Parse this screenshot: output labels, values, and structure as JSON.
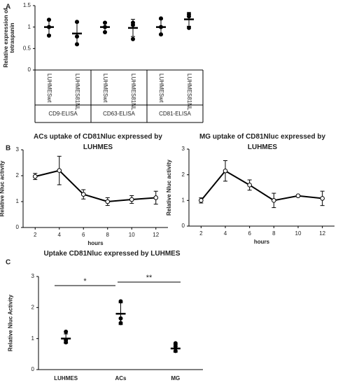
{
  "chart_data": [
    {
      "type": "dot",
      "panel": "A",
      "ylabel": "Relative expression of tetraspanin",
      "categories": [
        "LUHMESwt",
        "LUHMES81NL",
        "LUHMESwt",
        "LUHMES81NL",
        "LUHMESwt",
        "LUHMES81NL"
      ],
      "groups": [
        "CD9-ELISA",
        "CD63-ELISA",
        "CD81-ELISA"
      ],
      "values": [
        1.0,
        0.85,
        1.0,
        0.98,
        1.0,
        1.18
      ],
      "errors": [
        0.18,
        0.26,
        0.11,
        0.2,
        0.18,
        0.16
      ],
      "points": [
        [
          1.17,
          1.0,
          0.8
        ],
        [
          1.12,
          0.78,
          0.6
        ],
        [
          1.1,
          1.0,
          0.88
        ],
        [
          1.1,
          1.05,
          0.72
        ],
        [
          1.2,
          1.0,
          0.83
        ],
        [
          1.3,
          1.25,
          0.98
        ]
      ],
      "ylim": [
        0,
        1.5
      ],
      "yticks": [
        0,
        0.5,
        1,
        1.5
      ],
      "color": "#000000"
    },
    {
      "type": "line",
      "panel": "B",
      "title": "ACs uptake of CD81Nluc expressed by LUHMES",
      "xlabel": "hours",
      "ylabel": "Relative Nluc activity",
      "x": [
        2,
        4,
        6,
        8,
        10,
        12
      ],
      "values": [
        1.97,
        2.2,
        1.28,
        1.0,
        1.08,
        1.15
      ],
      "errors": [
        0.12,
        0.55,
        0.18,
        0.15,
        0.15,
        0.25
      ],
      "xlim": [
        1,
        13
      ],
      "xticks": [
        2,
        4,
        6,
        8,
        10,
        12
      ],
      "ylim": [
        0,
        3
      ],
      "yticks": [
        0,
        1,
        2,
        3
      ],
      "color": "#000000"
    },
    {
      "type": "line",
      "title": "MG uptake of CD81Nluc expressed by LUHMES",
      "xlabel": "hours",
      "ylabel": "Relative Nluc activity",
      "x": [
        2,
        4,
        6,
        8,
        10,
        12
      ],
      "values": [
        1.0,
        2.15,
        1.6,
        1.0,
        1.18,
        1.08
      ],
      "errors": [
        0.1,
        0.4,
        0.2,
        0.28,
        0.03,
        0.28
      ],
      "xlim": [
        1,
        13
      ],
      "xticks": [
        2,
        4,
        6,
        8,
        10,
        12
      ],
      "ylim": [
        0,
        3
      ],
      "yticks": [
        0,
        1,
        2,
        3
      ],
      "color": "#000000"
    },
    {
      "type": "dot",
      "panel": "C",
      "title": "Uptake CD81Nluc expressed by LUHMES",
      "ylabel": "Relative Nluc Activity",
      "categories": [
        "LUHMES",
        "ACs",
        "MG"
      ],
      "values": [
        1.0,
        1.8,
        0.68
      ],
      "errors": [
        0.15,
        0.35,
        0.12
      ],
      "points": [
        [
          1.22,
          0.95,
          0.88
        ],
        [
          2.2,
          1.65,
          1.5
        ],
        [
          0.85,
          0.75,
          0.6
        ]
      ],
      "annotations": [
        "*",
        "**"
      ],
      "ylim": [
        0,
        3
      ],
      "yticks": [
        0,
        1,
        2,
        3
      ],
      "color": "#000000"
    }
  ]
}
